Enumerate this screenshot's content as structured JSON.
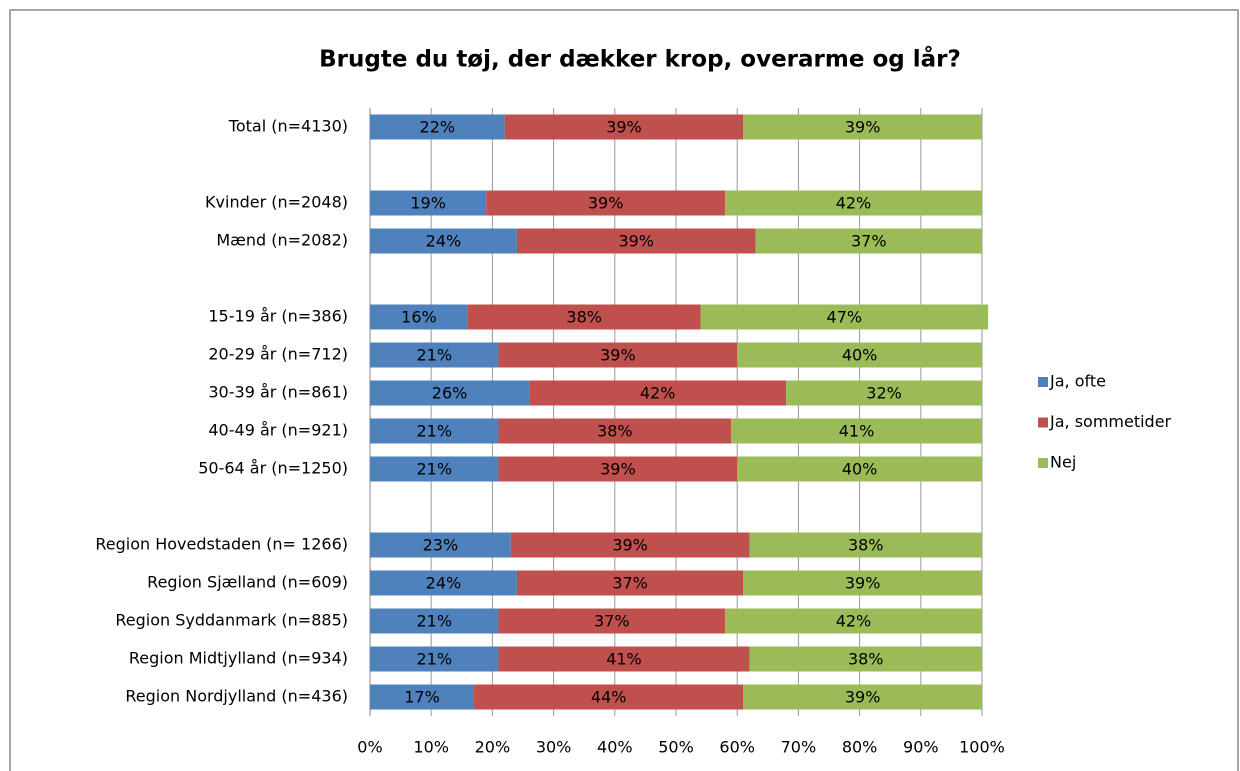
{
  "chart_data": {
    "type": "stacked_barh",
    "title": "Brugte du tøj, der dækker krop, overarme og lår?",
    "categories": [
      "Total (n=4130)",
      null,
      "Kvinder (n=2048)",
      "Mænd (n=2082)",
      null,
      "15-19 år (n=386)",
      "20-29 år (n=712)",
      "30-39 år (n=861)",
      "40-49 år (n=921)",
      "50-64 år (n=1250)",
      null,
      "Region Hovedstaden (n= 1266)",
      "Region Sjælland (n=609)",
      "Region Syddanmark (n=885)",
      "Region Midtjylland (n=934)",
      "Region Nordjylland (n=436)"
    ],
    "series": [
      {
        "name": "Ja, ofte",
        "color": "#4f81bd",
        "values": [
          22,
          null,
          19,
          24,
          null,
          16,
          21,
          26,
          21,
          21,
          null,
          23,
          24,
          21,
          21,
          17
        ],
        "value_labels": [
          "22%",
          null,
          "19%",
          "24%",
          null,
          "16%",
          "21%",
          "26%",
          "21%",
          "21%",
          null,
          "23%",
          "24%",
          "21%",
          "21%",
          "17%"
        ]
      },
      {
        "name": "Ja, sommetider",
        "color": "#c0504d",
        "values": [
          39,
          null,
          39,
          39,
          null,
          38,
          39,
          42,
          38,
          39,
          null,
          39,
          37,
          37,
          41,
          44
        ],
        "value_labels": [
          "39%",
          null,
          "39%",
          "39%",
          null,
          "38%",
          "39%",
          "42%",
          "38%",
          "39%",
          null,
          "39%",
          "37%",
          "37%",
          "41%",
          "44%"
        ]
      },
      {
        "name": "Nej",
        "color": "#9bbb59",
        "values": [
          39,
          null,
          42,
          37,
          null,
          47,
          40,
          32,
          41,
          40,
          null,
          38,
          39,
          42,
          38,
          39
        ],
        "value_labels": [
          "39%",
          null,
          "42%",
          "37%",
          null,
          "47%",
          "40%",
          "32%",
          "41%",
          "40%",
          null,
          "38%",
          "39%",
          "42%",
          "38%",
          "39%"
        ]
      }
    ],
    "xlim": [
      0,
      100
    ],
    "xticks": [
      {
        "value": 0,
        "label": "0%"
      },
      {
        "value": 10,
        "label": "10%"
      },
      {
        "value": 20,
        "label": "20%"
      },
      {
        "value": 30,
        "label": "30%"
      },
      {
        "value": 40,
        "label": "40%"
      },
      {
        "value": 50,
        "label": "50%"
      },
      {
        "value": 60,
        "label": "60%"
      },
      {
        "value": 70,
        "label": "70%"
      },
      {
        "value": 80,
        "label": "80%"
      },
      {
        "value": 90,
        "label": "90%"
      },
      {
        "value": 100,
        "label": "100%"
      }
    ],
    "grid": true,
    "legend": "right"
  }
}
